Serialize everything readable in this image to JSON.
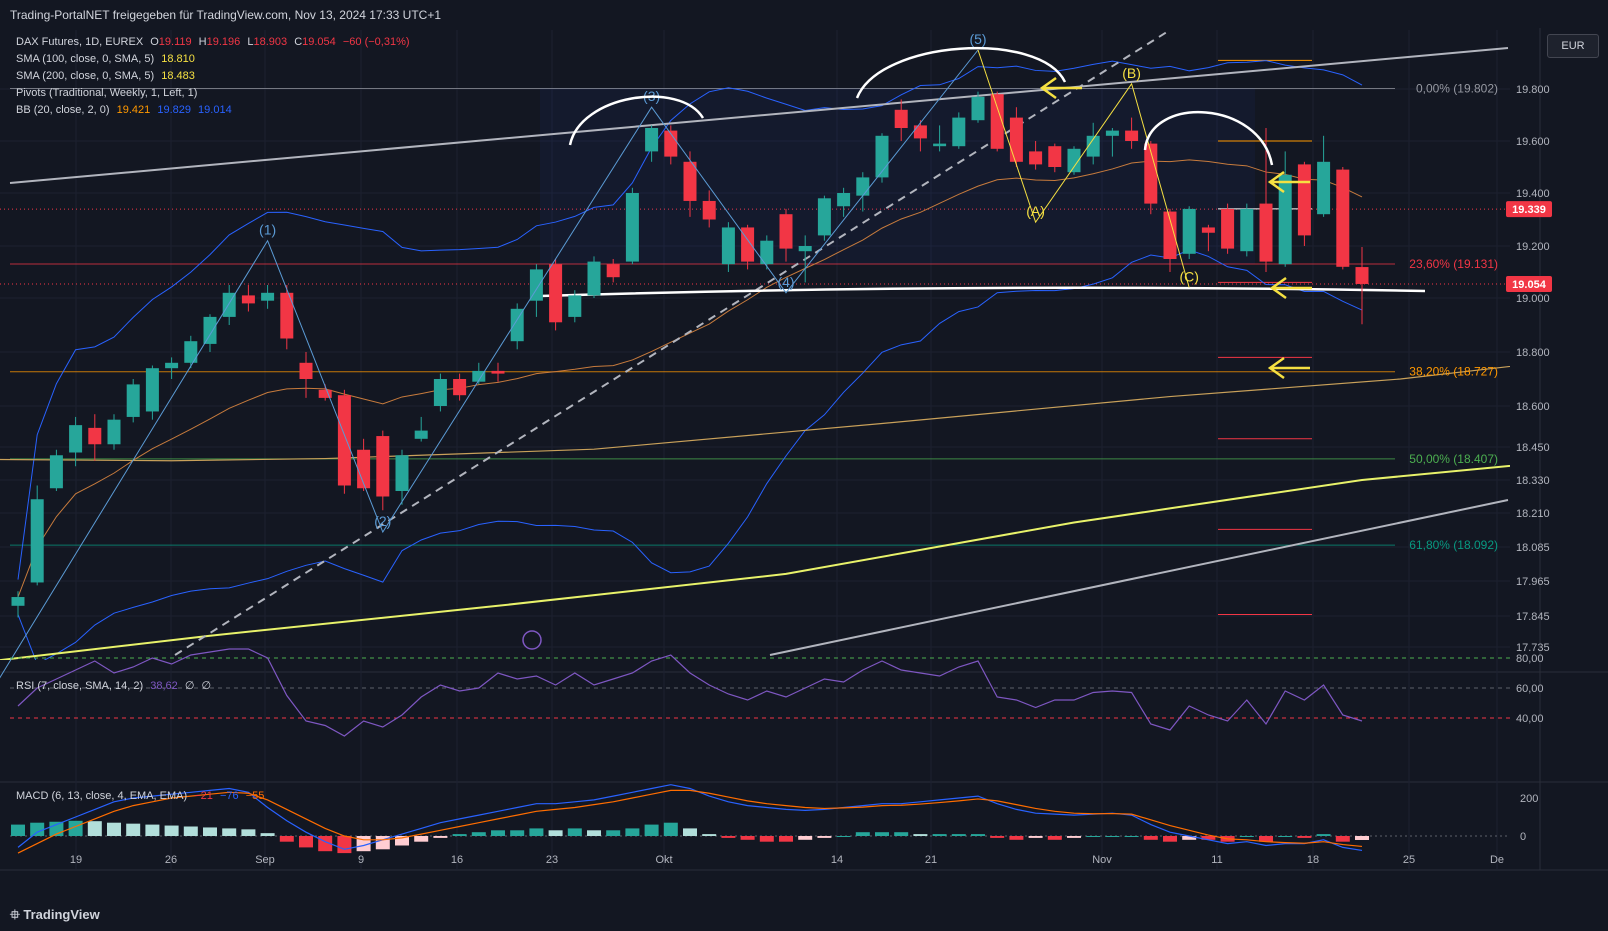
{
  "header": {
    "title": "Trading-PortalNET freigegeben für TradingView.com, Nov 13, 2024 17:33 UTC+1"
  },
  "footer": {
    "logo": "TradingView"
  },
  "currency": "EUR",
  "colors": {
    "up": "#26a69a",
    "down": "#f23645",
    "bg": "#131722",
    "sma100": "#c9a15a",
    "sma200": "#e8f26a",
    "bb": "#2962ff",
    "rsi": "#7e57c2",
    "macd": "#2962ff",
    "signal": "#ff6d00",
    "annotation_yellow": "#f5e042",
    "wave_blue": "#5b9bd5"
  },
  "legend": {
    "main": {
      "label": "DAX Futures, 1D, EUREX",
      "o_label": "O",
      "o": "19.119",
      "h_label": "H",
      "h": "19.196",
      "l_label": "L",
      "l": "18.903",
      "c_label": "C",
      "c": "19.054",
      "chg": "−60 (−0,31%)"
    },
    "sma100": {
      "label": "SMA (100, close, 0, SMA, 5)",
      "value": "18.810"
    },
    "sma200": {
      "label": "SMA (200, close, 0, SMA, 5)",
      "value": "18.483"
    },
    "pivots": {
      "label": "Pivots (Traditional, Weekly, 1, Left, 1)"
    },
    "bb": {
      "label": "BB (20, close, 2, 0)",
      "basis": "19.421",
      "upper": "19.829",
      "lower": "19.014"
    }
  },
  "rsi_legend": {
    "label": "RSI (7, close, SMA, 14, 2)",
    "value": "38,62",
    "v2": "∅",
    "v3": "∅"
  },
  "macd_legend": {
    "label": "MACD (6, 13, close, 4, EMA, EMA)",
    "hist": "−21",
    "macd": "−76",
    "signal": "−55"
  },
  "chart_data": {
    "type": "candlestick",
    "symbol": "DAX Futures",
    "interval": "1D",
    "y_ticks": [
      19800,
      19600,
      19400,
      19200,
      19000,
      18800,
      18600,
      18450,
      18330,
      18210,
      18085,
      17965,
      17845,
      17735
    ],
    "y_tick_labels": [
      "19.800",
      "19.600",
      "19.400",
      "19.200",
      "19.000",
      "18.800",
      "18.600",
      "18.450",
      "18.330",
      "18.210",
      "18.085",
      "17.965",
      "17.845",
      "17.735"
    ],
    "x_tick_labels": [
      "19",
      "26",
      "Sep",
      "9",
      "16",
      "23",
      "Okt",
      "14",
      "21",
      "Nov",
      "11",
      "18",
      "25",
      "De"
    ],
    "price_tags": [
      {
        "value": 19339,
        "label": "19.339",
        "color": "#f23645"
      },
      {
        "value": 19054,
        "label": "19.054",
        "color": "#f23645"
      }
    ],
    "fib_levels": [
      {
        "price": 19802,
        "label": "0,00% (19.802)",
        "color": "#9598a1"
      },
      {
        "price": 19131,
        "label": "23,60% (19.131)",
        "color": "#f23645"
      },
      {
        "price": 18727,
        "label": "38,20% (18.727)",
        "color": "#ff9800"
      },
      {
        "price": 18407,
        "label": "50,00% (18.407)",
        "color": "#4caf50"
      },
      {
        "price": 18092,
        "label": "61,80% (18.092)",
        "color": "#089981"
      }
    ],
    "candles": [
      {
        "o": 17880,
        "h": 17930,
        "l": 17840,
        "c": 17910
      },
      {
        "o": 17960,
        "h": 18310,
        "l": 17950,
        "c": 18260
      },
      {
        "o": 18300,
        "h": 18440,
        "l": 18290,
        "c": 18420
      },
      {
        "o": 18430,
        "h": 18560,
        "l": 18380,
        "c": 18530
      },
      {
        "o": 18520,
        "h": 18570,
        "l": 18400,
        "c": 18460
      },
      {
        "o": 18460,
        "h": 18570,
        "l": 18440,
        "c": 18550
      },
      {
        "o": 18560,
        "h": 18700,
        "l": 18540,
        "c": 18680
      },
      {
        "o": 18580,
        "h": 18750,
        "l": 18550,
        "c": 18740
      },
      {
        "o": 18740,
        "h": 18780,
        "l": 18700,
        "c": 18760
      },
      {
        "o": 18760,
        "h": 18860,
        "l": 18740,
        "c": 18840
      },
      {
        "o": 18830,
        "h": 18940,
        "l": 18800,
        "c": 18930
      },
      {
        "o": 18930,
        "h": 19050,
        "l": 18900,
        "c": 19020
      },
      {
        "o": 19010,
        "h": 19050,
        "l": 18950,
        "c": 18980
      },
      {
        "o": 18990,
        "h": 19050,
        "l": 18960,
        "c": 19020
      },
      {
        "o": 19020,
        "h": 19050,
        "l": 18810,
        "c": 18850
      },
      {
        "o": 18760,
        "h": 18800,
        "l": 18630,
        "c": 18700
      },
      {
        "o": 18660,
        "h": 18680,
        "l": 18620,
        "c": 18630
      },
      {
        "o": 18640,
        "h": 18660,
        "l": 18280,
        "c": 18310
      },
      {
        "o": 18440,
        "h": 18480,
        "l": 18290,
        "c": 18300
      },
      {
        "o": 18490,
        "h": 18510,
        "l": 18220,
        "c": 18270
      },
      {
        "o": 18290,
        "h": 18440,
        "l": 18240,
        "c": 18420
      },
      {
        "o": 18480,
        "h": 18560,
        "l": 18470,
        "c": 18510
      },
      {
        "o": 18600,
        "h": 18720,
        "l": 18580,
        "c": 18700
      },
      {
        "o": 18700,
        "h": 18720,
        "l": 18620,
        "c": 18640
      },
      {
        "o": 18690,
        "h": 18760,
        "l": 18680,
        "c": 18730
      },
      {
        "o": 18730,
        "h": 18760,
        "l": 18690,
        "c": 18720
      },
      {
        "o": 18840,
        "h": 18980,
        "l": 18810,
        "c": 18960
      },
      {
        "o": 18990,
        "h": 19130,
        "l": 18930,
        "c": 19110
      },
      {
        "o": 19130,
        "h": 19150,
        "l": 18880,
        "c": 18910
      },
      {
        "o": 18930,
        "h": 19030,
        "l": 18910,
        "c": 19010
      },
      {
        "o": 19010,
        "h": 19160,
        "l": 19000,
        "c": 19140
      },
      {
        "o": 19130,
        "h": 19150,
        "l": 19060,
        "c": 19080
      },
      {
        "o": 19140,
        "h": 19420,
        "l": 19130,
        "c": 19400
      },
      {
        "o": 19560,
        "h": 19660,
        "l": 19520,
        "c": 19650
      },
      {
        "o": 19640,
        "h": 19660,
        "l": 19510,
        "c": 19540
      },
      {
        "o": 19520,
        "h": 19560,
        "l": 19310,
        "c": 19370
      },
      {
        "o": 19370,
        "h": 19410,
        "l": 19270,
        "c": 19300
      },
      {
        "o": 19130,
        "h": 19290,
        "l": 19100,
        "c": 19270
      },
      {
        "o": 19270,
        "h": 19280,
        "l": 19110,
        "c": 19140
      },
      {
        "o": 19130,
        "h": 19240,
        "l": 19110,
        "c": 19220
      },
      {
        "o": 19320,
        "h": 19340,
        "l": 19140,
        "c": 19190
      },
      {
        "o": 19180,
        "h": 19240,
        "l": 19060,
        "c": 19200
      },
      {
        "o": 19240,
        "h": 19390,
        "l": 19220,
        "c": 19380
      },
      {
        "o": 19350,
        "h": 19420,
        "l": 19310,
        "c": 19400
      },
      {
        "o": 19390,
        "h": 19480,
        "l": 19330,
        "c": 19460
      },
      {
        "o": 19460,
        "h": 19630,
        "l": 19440,
        "c": 19620
      },
      {
        "o": 19720,
        "h": 19760,
        "l": 19600,
        "c": 19650
      },
      {
        "o": 19660,
        "h": 19680,
        "l": 19560,
        "c": 19610
      },
      {
        "o": 19580,
        "h": 19660,
        "l": 19560,
        "c": 19590
      },
      {
        "o": 19580,
        "h": 19710,
        "l": 19570,
        "c": 19690
      },
      {
        "o": 19680,
        "h": 19790,
        "l": 19670,
        "c": 19770
      },
      {
        "o": 19780,
        "h": 19790,
        "l": 19560,
        "c": 19570
      },
      {
        "o": 19690,
        "h": 19730,
        "l": 19500,
        "c": 19520
      },
      {
        "o": 19560,
        "h": 19600,
        "l": 19490,
        "c": 19510
      },
      {
        "o": 19580,
        "h": 19590,
        "l": 19480,
        "c": 19500
      },
      {
        "o": 19480,
        "h": 19580,
        "l": 19470,
        "c": 19570
      },
      {
        "o": 19540,
        "h": 19670,
        "l": 19510,
        "c": 19620
      },
      {
        "o": 19620,
        "h": 19650,
        "l": 19540,
        "c": 19640
      },
      {
        "o": 19640,
        "h": 19690,
        "l": 19570,
        "c": 19600
      },
      {
        "o": 19590,
        "h": 19600,
        "l": 19320,
        "c": 19360
      },
      {
        "o": 19330,
        "h": 19340,
        "l": 19100,
        "c": 19150
      },
      {
        "o": 19170,
        "h": 19350,
        "l": 19150,
        "c": 19340
      },
      {
        "o": 19270,
        "h": 19280,
        "l": 19180,
        "c": 19250
      },
      {
        "o": 19340,
        "h": 19360,
        "l": 19170,
        "c": 19190
      },
      {
        "o": 19180,
        "h": 19360,
        "l": 19160,
        "c": 19340
      },
      {
        "o": 19360,
        "h": 19650,
        "l": 19100,
        "c": 19140
      },
      {
        "o": 19130,
        "h": 19560,
        "l": 19120,
        "c": 19470
      },
      {
        "o": 19510,
        "h": 19520,
        "l": 19200,
        "c": 19240
      },
      {
        "o": 19320,
        "h": 19620,
        "l": 19310,
        "c": 19520
      },
      {
        "o": 19490,
        "h": 19500,
        "l": 19110,
        "c": 19120
      },
      {
        "o": 19119,
        "h": 19196,
        "l": 18903,
        "c": 19054
      }
    ],
    "sma200": [
      {
        "i": -2,
        "v": 17680
      },
      {
        "i": 10,
        "v": 17775
      },
      {
        "i": 25,
        "v": 17880
      },
      {
        "i": 40,
        "v": 17990
      },
      {
        "i": 55,
        "v": 18175
      },
      {
        "i": 70,
        "v": 18330
      },
      {
        "i": 85,
        "v": 18430
      }
    ],
    "sma100": [
      {
        "i": -2,
        "v": 18405
      },
      {
        "i": 8,
        "v": 18400
      },
      {
        "i": 16,
        "v": 18408
      },
      {
        "i": 30,
        "v": 18442
      },
      {
        "i": 45,
        "v": 18536
      },
      {
        "i": 60,
        "v": 18635
      },
      {
        "i": 72,
        "v": 18700
      },
      {
        "i": 85,
        "v": 18806
      }
    ],
    "rsi_y_ticks": [
      {
        "v": 80,
        "label": "80,00"
      },
      {
        "v": 60,
        "label": "60,00"
      },
      {
        "v": 40,
        "label": "40,00"
      }
    ],
    "rsi": [
      48,
      60,
      66,
      72,
      78,
      70,
      74,
      80,
      76,
      82,
      84,
      86,
      86,
      80,
      55,
      38,
      35,
      28,
      38,
      34,
      42,
      54,
      62,
      58,
      60,
      70,
      66,
      68,
      62,
      70,
      62,
      66,
      70,
      78,
      82,
      70,
      62,
      56,
      52,
      58,
      54,
      60,
      66,
      64,
      72,
      78,
      72,
      70,
      68,
      74,
      78,
      54,
      52,
      47,
      52,
      52,
      57,
      58,
      57,
      36,
      32,
      48,
      42,
      38,
      52,
      36,
      58,
      52,
      62,
      42,
      38
    ],
    "macd_y_ticks": [
      {
        "v": 200,
        "label": "200"
      },
      {
        "v": 0,
        "label": "0"
      }
    ],
    "macd_hist": [
      60,
      70,
      75,
      80,
      78,
      70,
      65,
      60,
      55,
      50,
      45,
      40,
      35,
      15,
      -30,
      -60,
      -80,
      -90,
      -80,
      -70,
      -50,
      -30,
      -10,
      10,
      20,
      30,
      30,
      40,
      30,
      40,
      30,
      30,
      40,
      60,
      70,
      40,
      10,
      -10,
      -20,
      -30,
      -30,
      -20,
      -10,
      0,
      20,
      20,
      20,
      10,
      10,
      10,
      10,
      -10,
      -20,
      -10,
      -20,
      -10,
      0,
      0,
      0,
      -20,
      -30,
      -20,
      -20,
      -30,
      0,
      -30,
      0,
      -10,
      10,
      -30,
      -21
    ],
    "macd_line": [
      -60,
      20,
      60,
      100,
      140,
      180,
      200,
      210,
      220,
      230,
      240,
      250,
      230,
      150,
      80,
      20,
      -30,
      -70,
      -50,
      -20,
      10,
      40,
      70,
      90,
      110,
      130,
      150,
      170,
      170,
      180,
      190,
      210,
      230,
      250,
      270,
      250,
      210,
      180,
      160,
      150,
      140,
      135,
      140,
      150,
      160,
      170,
      170,
      180,
      190,
      200,
      210,
      170,
      140,
      120,
      115,
      110,
      115,
      120,
      110,
      60,
      20,
      0,
      -20,
      -40,
      -30,
      -50,
      -40,
      -40,
      -20,
      -60,
      -76
    ],
    "macd_signal": [
      -90,
      -40,
      10,
      50,
      90,
      130,
      160,
      180,
      200,
      210,
      220,
      230,
      225,
      190,
      140,
      90,
      40,
      0,
      -20,
      -20,
      -10,
      10,
      30,
      50,
      70,
      90,
      110,
      130,
      140,
      150,
      165,
      180,
      200,
      220,
      240,
      240,
      225,
      205,
      185,
      170,
      160,
      150,
      145,
      148,
      152,
      160,
      162,
      168,
      176,
      185,
      195,
      185,
      165,
      145,
      130,
      120,
      117,
      118,
      115,
      85,
      55,
      30,
      5,
      -15,
      -20,
      -30,
      -35,
      -38,
      -30,
      -45,
      -55
    ],
    "waves": [
      {
        "label": "(1)",
        "color": "#5b9bd5",
        "i": 13,
        "price": 19220
      },
      {
        "label": "(2)",
        "color": "#5b9bd5",
        "i": 19,
        "price": 18140
      },
      {
        "label": "(3)",
        "color": "#5b9bd5",
        "i": 33,
        "price": 19730
      },
      {
        "label": "(4)",
        "color": "#5b9bd5",
        "i": 40,
        "price": 19020
      },
      {
        "label": "(5)",
        "color": "#5b9bd5",
        "i": 50,
        "price": 19950
      },
      {
        "label": "(A)",
        "color": "#f5e042",
        "i": 53,
        "price": 19290
      },
      {
        "label": "(B)",
        "color": "#f5e042",
        "i": 58,
        "price": 19820
      },
      {
        "label": "(C)",
        "color": "#f5e042",
        "i": 61,
        "price": 19040
      }
    ]
  }
}
